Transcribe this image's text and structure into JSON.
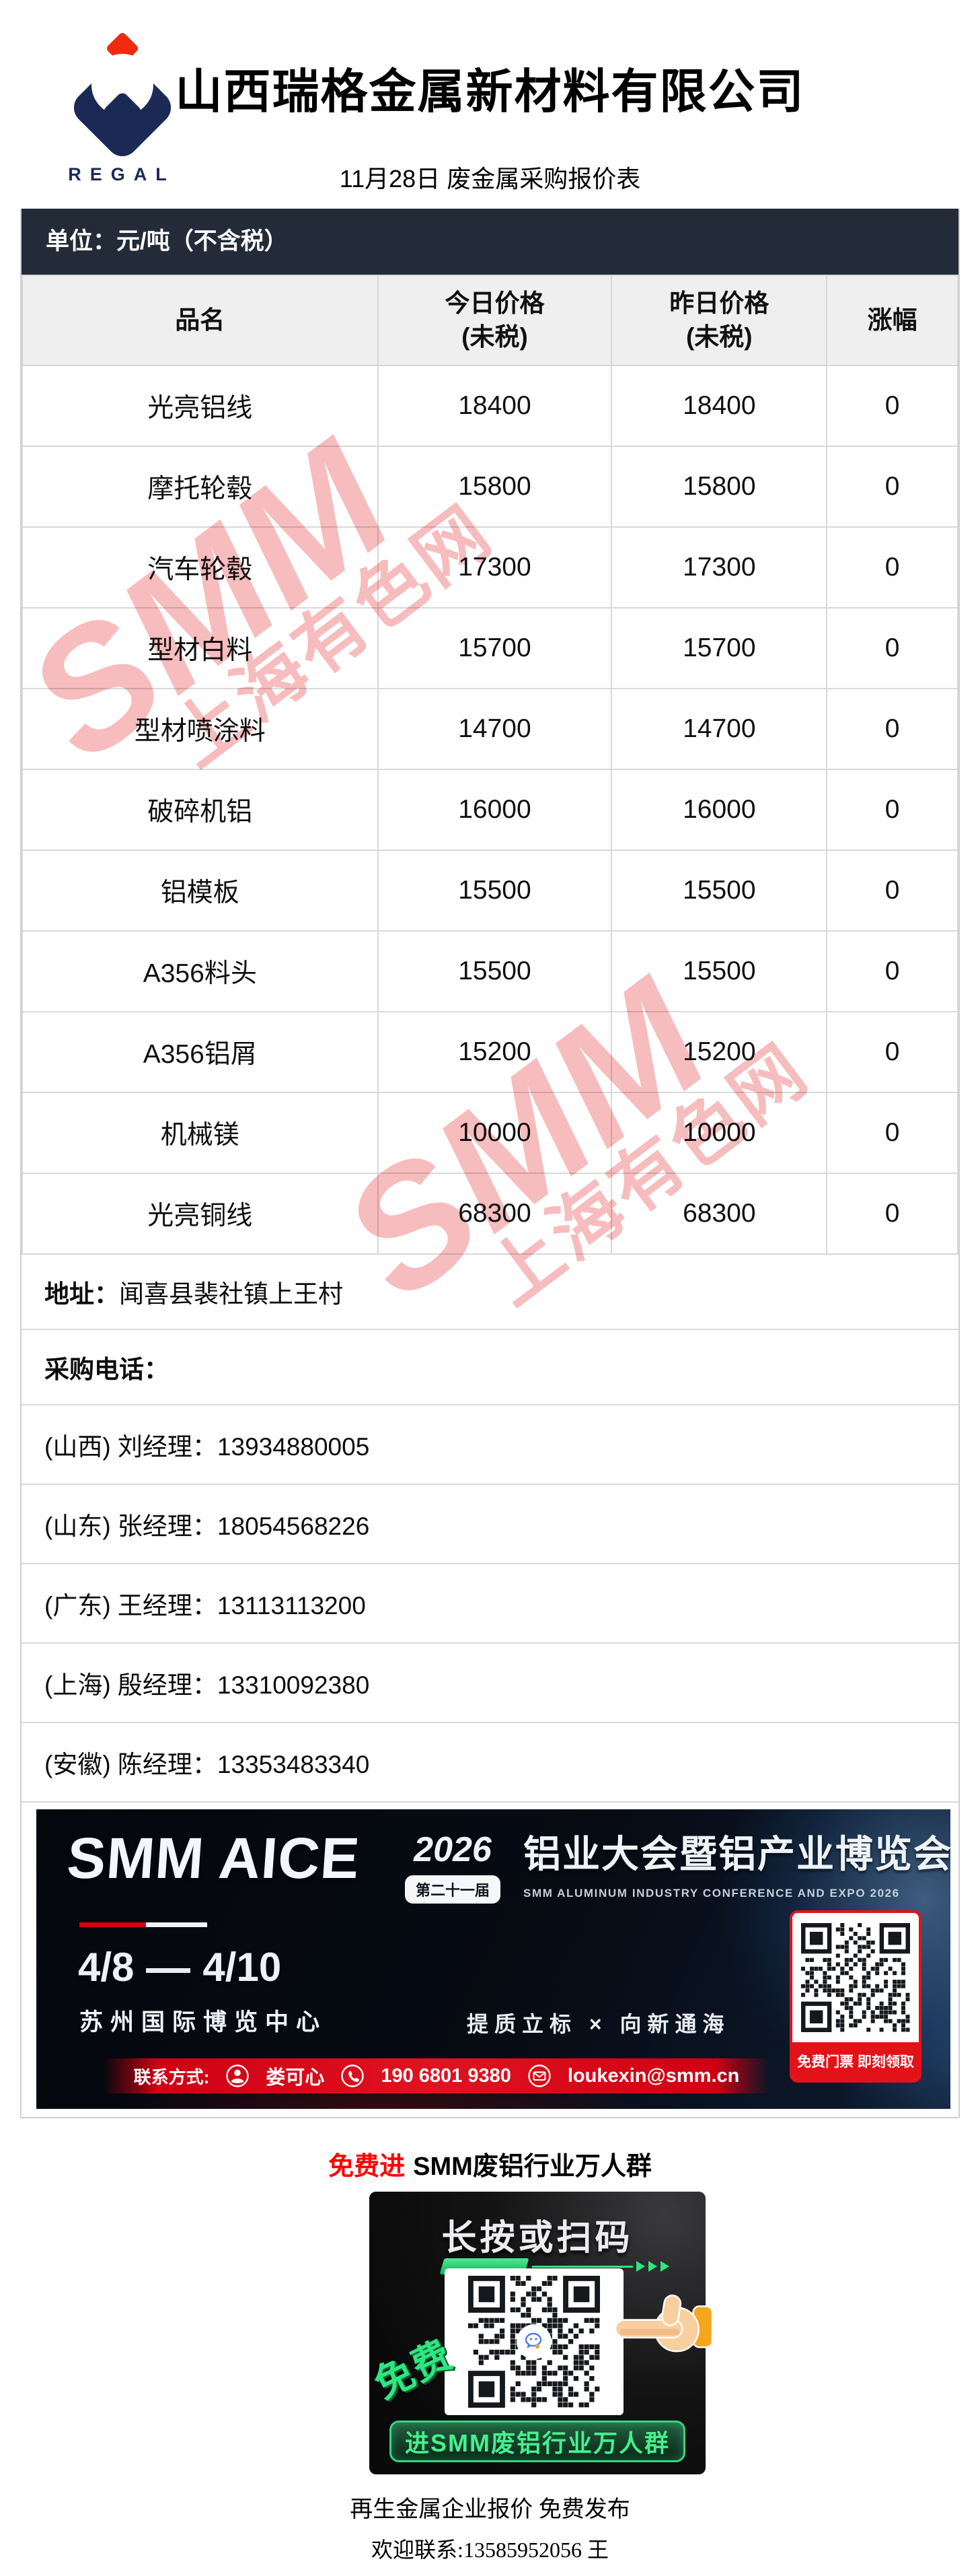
{
  "header": {
    "logo_text": "REGAL",
    "company_name": "山西瑞格金属新材料有限公司",
    "subtitle": "11月28日 废金属采购报价表"
  },
  "unit_bar": {
    "text": "单位：元/吨（不含税）"
  },
  "price_table": {
    "columns": [
      {
        "label": "品名",
        "sub": ""
      },
      {
        "label": "今日价格",
        "sub": "(未税)"
      },
      {
        "label": "昨日价格",
        "sub": "(未税)"
      },
      {
        "label": "涨幅",
        "sub": ""
      }
    ],
    "rows": [
      {
        "name": "光亮铝线",
        "today": "18400",
        "yesterday": "18400",
        "change": "0"
      },
      {
        "name": "摩托轮毂",
        "today": "15800",
        "yesterday": "15800",
        "change": "0"
      },
      {
        "name": "汽车轮毂",
        "today": "17300",
        "yesterday": "17300",
        "change": "0"
      },
      {
        "name": "型材白料",
        "today": "15700",
        "yesterday": "15700",
        "change": "0"
      },
      {
        "name": "型材喷涂料",
        "today": "14700",
        "yesterday": "14700",
        "change": "0"
      },
      {
        "name": "破碎机铝",
        "today": "16000",
        "yesterday": "16000",
        "change": "0"
      },
      {
        "name": "铝模板",
        "today": "15500",
        "yesterday": "15500",
        "change": "0"
      },
      {
        "name": "A356料头",
        "today": "15500",
        "yesterday": "15500",
        "change": "0"
      },
      {
        "name": "A356铝屑",
        "today": "15200",
        "yesterday": "15200",
        "change": "0"
      },
      {
        "name": "机械镁",
        "today": "10000",
        "yesterday": "10000",
        "change": "0"
      },
      {
        "name": "光亮铜线",
        "today": "68300",
        "yesterday": "68300",
        "change": "0"
      }
    ]
  },
  "info": {
    "address_label": "地址：",
    "address_value": "闻喜县裴社镇上王村",
    "phone_section_label": "采购电话：",
    "contacts": [
      "(山西) 刘经理：13934880005",
      "(山东) 张经理：18054568226",
      "(广东) 王经理：13113113200",
      "(上海) 殷经理：13310092380",
      "(安徽) 陈经理：13353483340"
    ]
  },
  "watermark": {
    "line1": "SMM",
    "line2": "上海有色网",
    "color": "#f6b0b2"
  },
  "banner": {
    "brand": "SMM AICE",
    "year": "2026",
    "edition_badge": "第二十一届",
    "title_cn": "铝业大会暨铝产业博览会",
    "title_en": "SMM ALUMINUM INDUSTRY CONFERENCE AND EXPO 2026",
    "date_start": "4/8",
    "date_end": "4/10",
    "venue": "苏州国际博览中心",
    "slogan": "提质立标 × 向新通海",
    "contact_label": "联系方式:",
    "contact_name": "娄可心",
    "contact_phone": "190 6801 9380",
    "contact_email": "loukexin@smm.cn",
    "ticket_text": "免费门票 即刻领取"
  },
  "bottom": {
    "invite_prefix": "免费进",
    "invite_text": "SMM废铝行业万人群",
    "poster_title": "长按或扫码",
    "poster_free_text": "免费",
    "poster_pill_text": "进SMM废铝行业万人群",
    "footer_line1": "再生金属企业报价 免费发布",
    "footer_line2": "欢迎联系:13585952056 王"
  },
  "colors": {
    "dark_bar": "#232b38",
    "accent_red": "#e31219",
    "banner_red": "#cf0013",
    "navy": "#1b2a55",
    "green": "#35e07f",
    "watermark_pink": "#f6b0b2"
  }
}
